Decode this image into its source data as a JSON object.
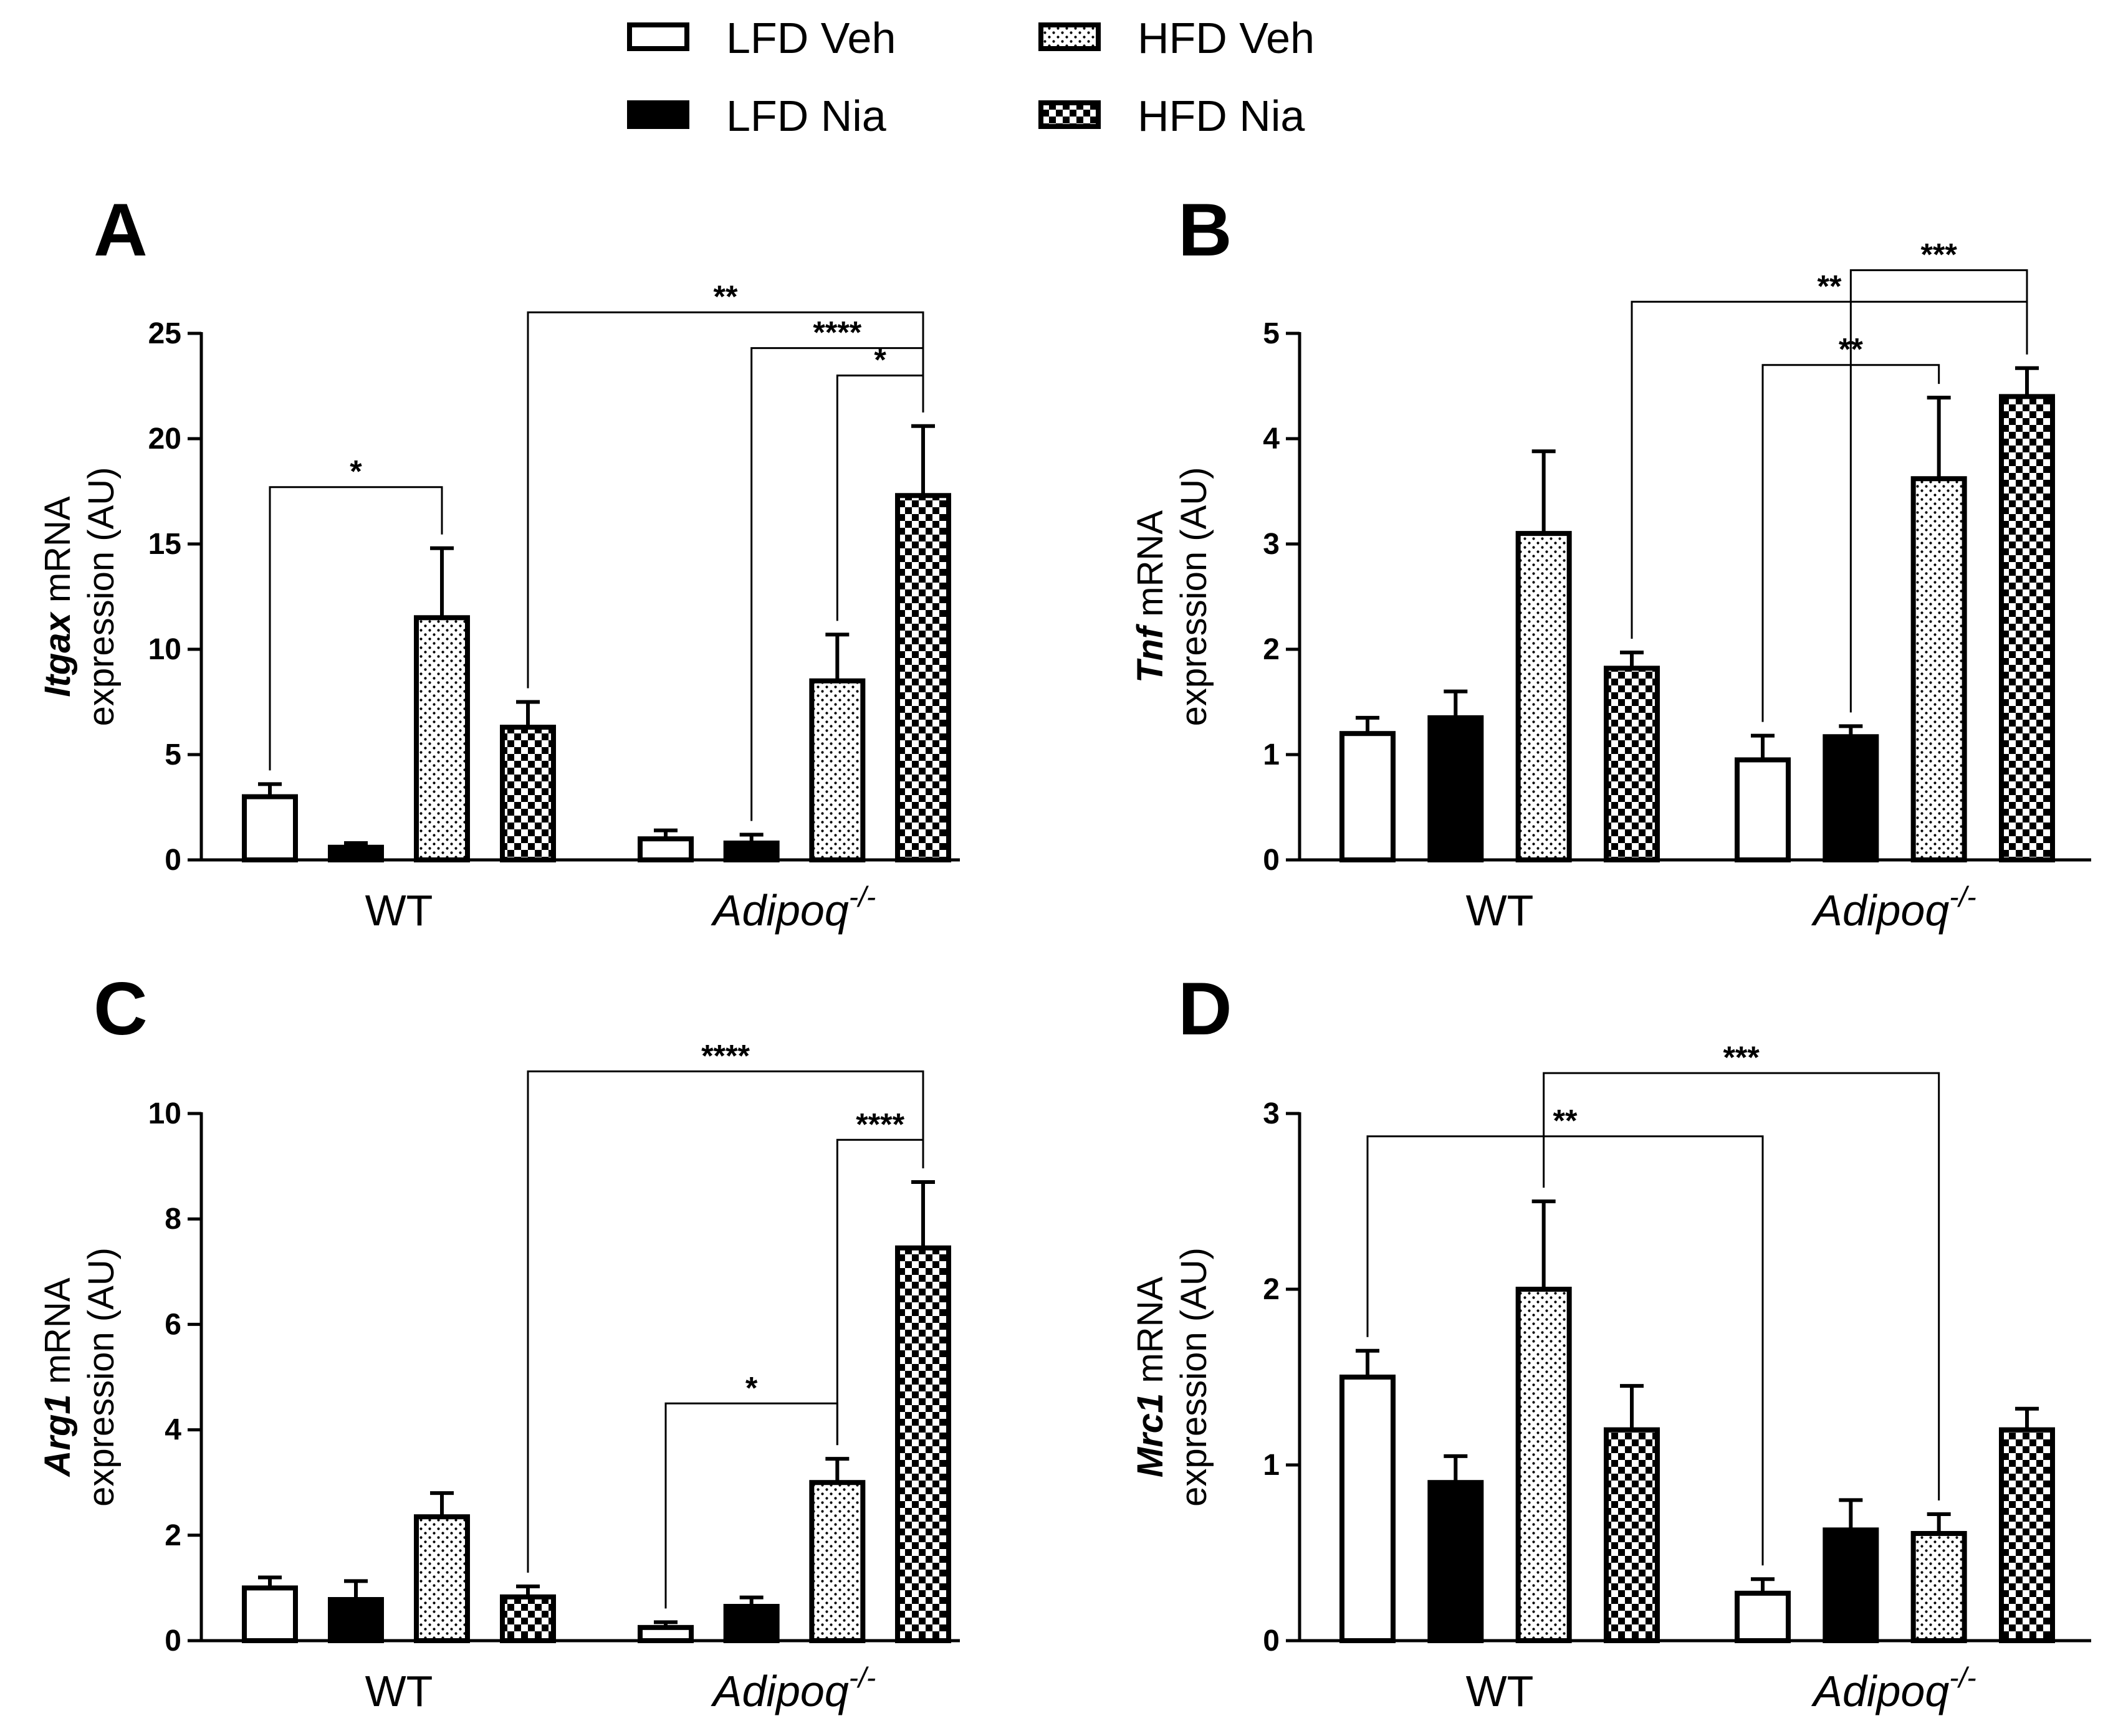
{
  "legend": [
    {
      "label": "LFD Veh",
      "pattern": "open"
    },
    {
      "label": "HFD Veh",
      "pattern": "dots"
    },
    {
      "label": "LFD Nia",
      "pattern": "solid"
    },
    {
      "label": "HFD Nia",
      "pattern": "checker"
    }
  ],
  "colors": {
    "ink": "#000000",
    "background": "#ffffff"
  },
  "chart_data": [
    {
      "panel": "A",
      "type": "bar",
      "gene": "Itgax",
      "ylabel_line1_rest": " mRNA",
      "ylabel_line2": "expression (AU)",
      "ylim": [
        0,
        25
      ],
      "yticks": [
        0,
        5,
        10,
        15,
        20,
        25
      ],
      "groups": [
        {
          "label": "WT",
          "italic": false,
          "sup": ""
        },
        {
          "label": "Adipoq",
          "italic": true,
          "sup": "-/-"
        }
      ],
      "series": [
        {
          "name": "LFD Veh",
          "pattern": "open",
          "values": [
            3.0,
            1.0
          ],
          "errors": [
            0.6,
            0.4
          ]
        },
        {
          "name": "LFD Nia",
          "pattern": "solid",
          "values": [
            0.6,
            0.8
          ],
          "errors": [
            0.2,
            0.4
          ]
        },
        {
          "name": "HFD Veh",
          "pattern": "dots",
          "values": [
            11.5,
            8.5
          ],
          "errors": [
            3.3,
            2.2
          ]
        },
        {
          "name": "HFD Nia",
          "pattern": "checker",
          "values": [
            6.3,
            17.3
          ],
          "errors": [
            1.2,
            3.3
          ]
        }
      ],
      "significance": [
        {
          "from": [
            0,
            0
          ],
          "to": [
            0,
            2
          ],
          "y": 17.7,
          "label": "*"
        },
        {
          "from": [
            0,
            3
          ],
          "to": [
            1,
            3
          ],
          "y": 26.0,
          "label": "**"
        },
        {
          "from": [
            1,
            1
          ],
          "to": [
            1,
            3
          ],
          "y": 24.3,
          "label": "****"
        },
        {
          "from": [
            1,
            2
          ],
          "to": [
            1,
            3
          ],
          "y": 23.0,
          "label": "*"
        }
      ]
    },
    {
      "panel": "B",
      "type": "bar",
      "gene": "Tnf",
      "ylabel_line1_rest": " mRNA",
      "ylabel_line2": "expression (AU)",
      "ylim": [
        0,
        5
      ],
      "yticks": [
        0,
        1,
        2,
        3,
        4,
        5
      ],
      "groups": [
        {
          "label": "WT",
          "italic": false,
          "sup": ""
        },
        {
          "label": "Adipoq",
          "italic": true,
          "sup": "-/-"
        }
      ],
      "series": [
        {
          "name": "LFD Veh",
          "pattern": "open",
          "values": [
            1.2,
            0.95
          ],
          "errors": [
            0.15,
            0.23
          ]
        },
        {
          "name": "LFD Nia",
          "pattern": "solid",
          "values": [
            1.35,
            1.17
          ],
          "errors": [
            0.25,
            0.1
          ]
        },
        {
          "name": "HFD Veh",
          "pattern": "dots",
          "values": [
            3.1,
            3.62
          ],
          "errors": [
            0.78,
            0.77
          ]
        },
        {
          "name": "HFD Nia",
          "pattern": "checker",
          "values": [
            1.82,
            4.4
          ],
          "errors": [
            0.15,
            0.27
          ]
        }
      ],
      "significance": [
        {
          "from": [
            1,
            1
          ],
          "to": [
            1,
            3
          ],
          "y": 5.6,
          "label": "***"
        },
        {
          "from": [
            0,
            3
          ],
          "to": [
            1,
            3
          ],
          "y": 5.3,
          "label": "**"
        },
        {
          "from": [
            1,
            0
          ],
          "to": [
            1,
            2
          ],
          "y": 4.7,
          "label": "**"
        }
      ]
    },
    {
      "panel": "C",
      "type": "bar",
      "gene": "Arg1",
      "ylabel_line1_rest": " mRNA",
      "ylabel_line2": "expression (AU)",
      "ylim": [
        0,
        10
      ],
      "yticks": [
        0,
        2,
        4,
        6,
        8,
        10
      ],
      "groups": [
        {
          "label": "WT",
          "italic": false,
          "sup": ""
        },
        {
          "label": "Adipoq",
          "italic": true,
          "sup": "-/-"
        }
      ],
      "series": [
        {
          "name": "LFD Veh",
          "pattern": "open",
          "values": [
            1.0,
            0.25
          ],
          "errors": [
            0.2,
            0.1
          ]
        },
        {
          "name": "LFD Nia",
          "pattern": "solid",
          "values": [
            0.78,
            0.65
          ],
          "errors": [
            0.35,
            0.17
          ]
        },
        {
          "name": "HFD Veh",
          "pattern": "dots",
          "values": [
            2.35,
            3.0
          ],
          "errors": [
            0.45,
            0.45
          ]
        },
        {
          "name": "HFD Nia",
          "pattern": "checker",
          "values": [
            0.83,
            7.45
          ],
          "errors": [
            0.2,
            1.25
          ]
        }
      ],
      "significance": [
        {
          "from": [
            0,
            3
          ],
          "to": [
            1,
            3
          ],
          "y": 10.8,
          "label": "****"
        },
        {
          "from": [
            1,
            2
          ],
          "to": [
            1,
            3
          ],
          "y": 9.5,
          "label": "****"
        },
        {
          "from": [
            1,
            0
          ],
          "to": [
            1,
            2
          ],
          "y": 4.5,
          "label": "*"
        }
      ]
    },
    {
      "panel": "D",
      "type": "bar",
      "gene": "Mrc1",
      "ylabel_line1_rest": " mRNA",
      "ylabel_line2": "expression (AU)",
      "ylim": [
        0,
        3
      ],
      "yticks": [
        0,
        1,
        2,
        3
      ],
      "groups": [
        {
          "label": "WT",
          "italic": false,
          "sup": ""
        },
        {
          "label": "Adipoq",
          "italic": true,
          "sup": "-/-"
        }
      ],
      "series": [
        {
          "name": "LFD Veh",
          "pattern": "open",
          "values": [
            1.5,
            0.27
          ],
          "errors": [
            0.15,
            0.08
          ]
        },
        {
          "name": "LFD Nia",
          "pattern": "solid",
          "values": [
            0.9,
            0.63
          ],
          "errors": [
            0.15,
            0.17
          ]
        },
        {
          "name": "HFD Veh",
          "pattern": "dots",
          "values": [
            2.0,
            0.61
          ],
          "errors": [
            0.5,
            0.11
          ]
        },
        {
          "name": "HFD Nia",
          "pattern": "checker",
          "values": [
            1.2,
            1.2
          ],
          "errors": [
            0.25,
            0.12
          ]
        }
      ],
      "significance": [
        {
          "from": [
            0,
            2
          ],
          "to": [
            1,
            2
          ],
          "y": 3.23,
          "label": "***"
        },
        {
          "from": [
            0,
            0
          ],
          "to": [
            1,
            0
          ],
          "y": 2.87,
          "label": "**"
        }
      ]
    }
  ]
}
